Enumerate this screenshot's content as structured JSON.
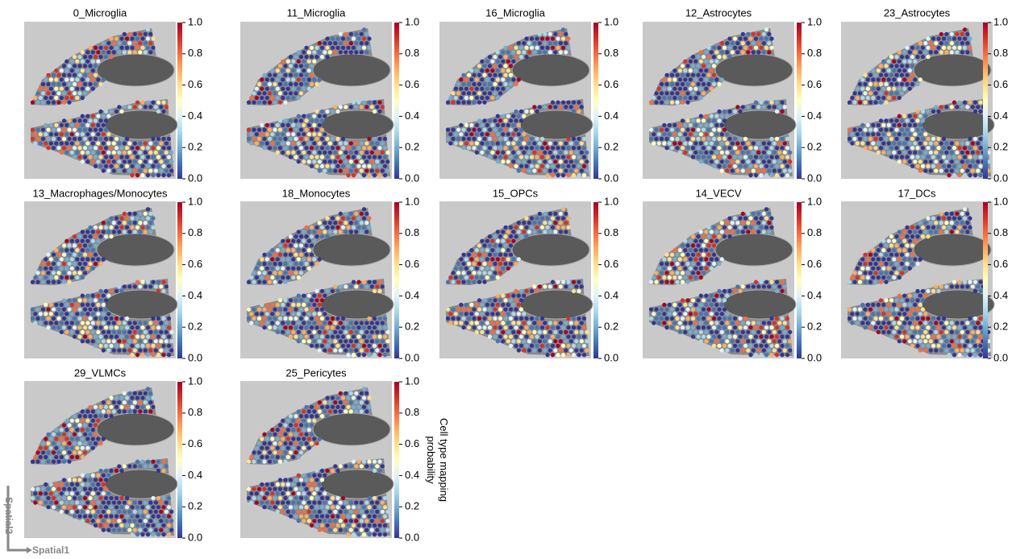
{
  "colormap": [
    "#313695",
    "#4575b4",
    "#74add1",
    "#abd9e9",
    "#e0f3f8",
    "#ffffbf",
    "#fee090",
    "#fdae61",
    "#f46d43",
    "#d73027",
    "#a50026"
  ],
  "chart_data": [
    {
      "type": "spatial",
      "title": "0_Microglia",
      "clim": [
        0,
        1
      ],
      "cticks": [
        {
          "value": 0,
          "label": "0.0"
        },
        0.2,
        0.4,
        0.6,
        0.8,
        {
          "value": 1,
          "label": "1.0"
        }
      ]
    },
    {
      "type": "spatial",
      "title": "11_Microglia",
      "clim": [
        0,
        1
      ],
      "cticks": [
        {
          "value": 0,
          "label": "0.0"
        },
        0.2,
        0.4,
        0.6,
        0.8,
        {
          "value": 1,
          "label": "1.0"
        }
      ]
    },
    {
      "type": "spatial",
      "title": "16_Microglia",
      "clim": [
        0,
        1
      ],
      "cticks": [
        {
          "value": 0,
          "label": "0.0"
        },
        0.2,
        0.4,
        0.6,
        0.8,
        {
          "value": 1,
          "label": "1.0"
        }
      ]
    },
    {
      "type": "spatial",
      "title": "12_Astrocytes",
      "clim": [
        0,
        1
      ],
      "cticks": [
        {
          "value": 0,
          "label": "0.0"
        },
        0.2,
        0.4,
        0.6,
        0.8,
        {
          "value": 1,
          "label": "1.0"
        }
      ]
    },
    {
      "type": "spatial",
      "title": "23_Astrocytes",
      "clim": [
        0,
        1
      ],
      "cticks": [
        {
          "value": 0,
          "label": "0.0"
        },
        0.2,
        0.4,
        0.6,
        0.8,
        {
          "value": 1,
          "label": "1.0"
        }
      ]
    },
    {
      "type": "spatial",
      "title": "13_Macrophages/Monocytes",
      "clim": [
        0,
        1
      ],
      "cticks": [
        {
          "value": 0,
          "label": "0.0"
        },
        0.2,
        0.4,
        0.6,
        0.8,
        {
          "value": 1,
          "label": "1.0"
        }
      ]
    },
    {
      "type": "spatial",
      "title": "18_Monocytes",
      "clim": [
        0,
        1
      ],
      "cticks": [
        {
          "value": 0,
          "label": "0.0"
        },
        0.2,
        0.4,
        0.6,
        0.8,
        {
          "value": 1,
          "label": "1.0"
        }
      ]
    },
    {
      "type": "spatial",
      "title": "15_OPCs",
      "clim": [
        0,
        1
      ],
      "cticks": [
        {
          "value": 0,
          "label": "0.0"
        },
        0.2,
        0.4,
        0.6,
        0.8,
        {
          "value": 1,
          "label": "1.0"
        }
      ]
    },
    {
      "type": "spatial",
      "title": "14_VECV",
      "clim": [
        0,
        1
      ],
      "cticks": [
        {
          "value": 0,
          "label": "0.0"
        },
        0.2,
        0.4,
        0.6,
        0.8,
        {
          "value": 1,
          "label": "1.0"
        }
      ]
    },
    {
      "type": "spatial",
      "title": "17_DCs",
      "clim": [
        0,
        1
      ],
      "cticks": [
        {
          "value": 0,
          "label": "0.0"
        },
        0.2,
        0.4,
        0.6,
        0.8,
        {
          "value": 1,
          "label": "1.0"
        }
      ]
    },
    {
      "type": "spatial",
      "title": "29_VLMCs",
      "clim": [
        0,
        1
      ],
      "cticks": [
        {
          "value": 0,
          "label": "0.0"
        },
        0.2,
        0.4,
        0.6,
        0.8,
        {
          "value": 1,
          "label": "1.0"
        }
      ],
      "xlabel": "Spatial1",
      "ylabel": "Spatial2"
    },
    {
      "type": "spatial",
      "title": "25_Pericytes",
      "clim": [
        0,
        1
      ],
      "cticks": [
        {
          "value": 0,
          "label": "0.0"
        },
        0.2,
        0.4,
        0.6,
        0.8,
        {
          "value": 1,
          "label": "1.0"
        }
      ],
      "clabel": "Cell type mapping probability"
    }
  ]
}
